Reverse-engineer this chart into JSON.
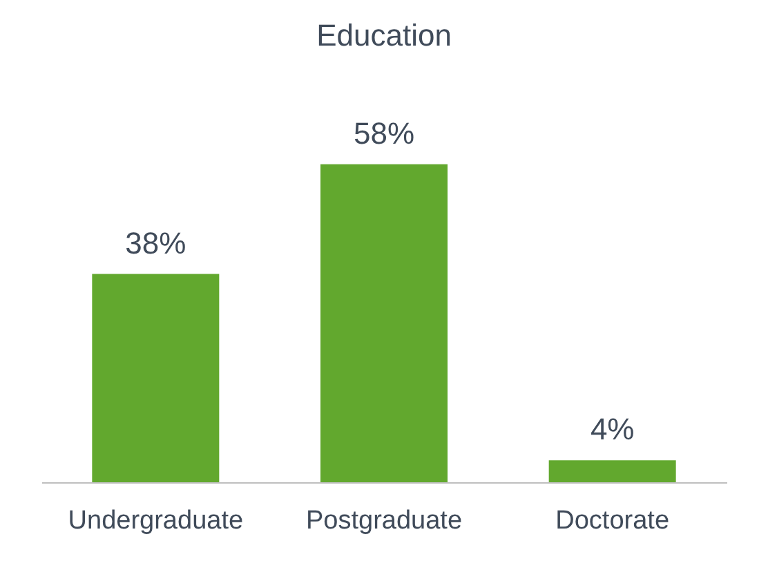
{
  "chart_data": {
    "type": "bar",
    "title": "Education",
    "categories": [
      "Undergraduate",
      "Postgraduate",
      "Doctorate"
    ],
    "values": [
      38,
      58,
      4
    ],
    "value_labels": [
      "38%",
      "58%",
      "4%"
    ],
    "color": "#62a82e",
    "grid": false
  }
}
